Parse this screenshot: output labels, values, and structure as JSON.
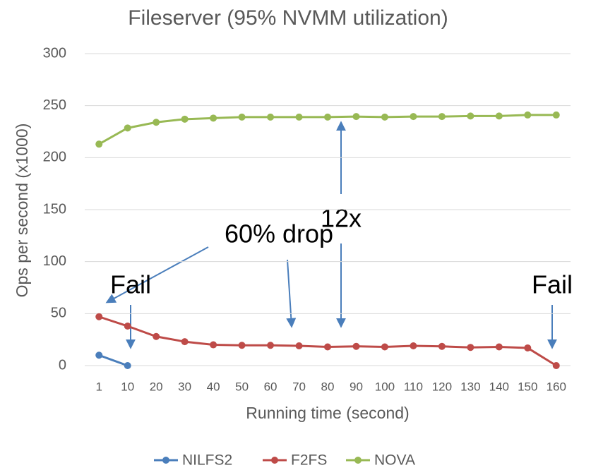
{
  "chart_data": {
    "type": "line",
    "title": "Fileserver (95% NVMM utilization)",
    "x_label": "Running time (second)",
    "y_label": "Ops per second (x1000)",
    "categories": [
      "1",
      "10",
      "20",
      "30",
      "40",
      "50",
      "60",
      "70",
      "80",
      "90",
      "100",
      "110",
      "120",
      "130",
      "140",
      "150",
      "160"
    ],
    "series": [
      {
        "name": "NILFS2",
        "color": "#4a7ebb",
        "values": [
          10,
          0,
          null,
          null,
          null,
          null,
          null,
          null,
          null,
          null,
          null,
          null,
          null,
          null,
          null,
          null,
          null
        ]
      },
      {
        "name": "F2FS",
        "color": "#be4b48",
        "values": [
          47,
          38,
          28,
          23,
          20,
          19.5,
          19.5,
          19,
          18,
          18.5,
          18,
          19,
          18.5,
          17.5,
          18,
          17,
          0
        ]
      },
      {
        "name": "NOVA",
        "color": "#98b954",
        "values": [
          213,
          228.5,
          234,
          237,
          238,
          239,
          239,
          239,
          239,
          239.5,
          239,
          239.5,
          239.5,
          240,
          240,
          241,
          241
        ]
      }
    ],
    "ylim": [
      0,
      300
    ],
    "yticks": [
      0,
      50,
      100,
      150,
      200,
      250,
      300
    ],
    "grid": true,
    "legend": "bottom",
    "annotations": [
      "60% drop",
      "12x",
      "Fail",
      "Fail"
    ]
  }
}
